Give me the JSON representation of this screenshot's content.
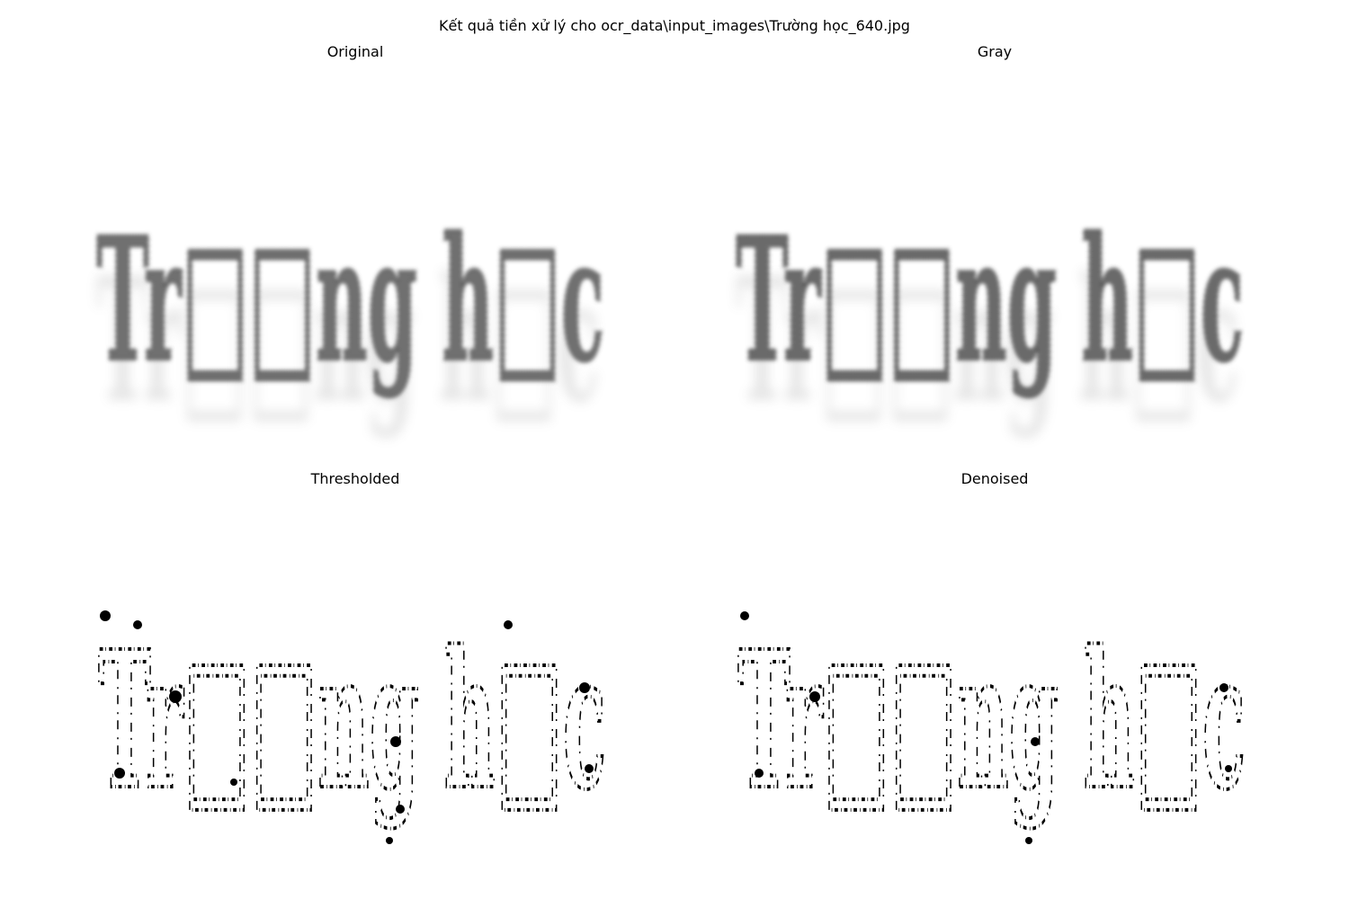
{
  "figure": {
    "title": "Kết quả tiền xử lý cho ocr_data\\input_images\\Trường học_640.jpg"
  },
  "panels": {
    "original": {
      "title": "Original"
    },
    "gray": {
      "title": "Gray"
    },
    "thresholded": {
      "title": "Thresholded"
    },
    "denoised": {
      "title": "Denoised"
    }
  },
  "image_text": {
    "glyphs": [
      "T",
      "r",
      "□",
      "□",
      "n",
      "g",
      "h",
      "□",
      "c"
    ]
  },
  "colors": {
    "background": "#ffffff",
    "ink_soft": "#6e6e6e",
    "ink_binary": "#000000"
  }
}
